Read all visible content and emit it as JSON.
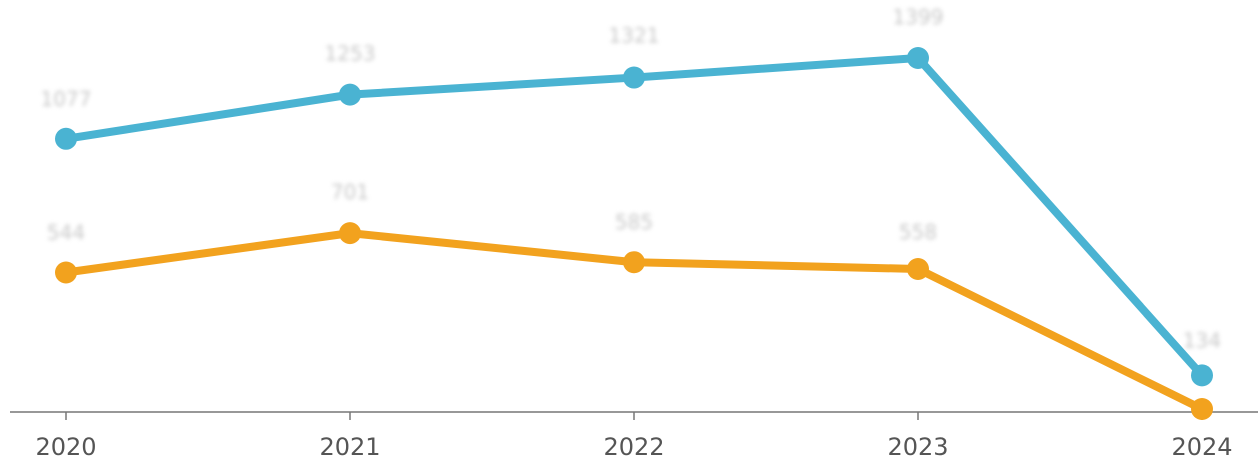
{
  "chart_data": {
    "type": "line",
    "categories": [
      "2020",
      "2021",
      "2022",
      "2023",
      "2024"
    ],
    "series": [
      {
        "name": "",
        "color": "#4ab3d2",
        "values": [
          1077,
          1253,
          1321,
          1399,
          134
        ]
      },
      {
        "name": "",
        "color": "#f2a21e",
        "values": [
          544,
          701,
          585,
          558,
          0
        ]
      }
    ],
    "data_labels": [
      [
        "1077",
        "1253",
        "1321",
        "1399",
        "134"
      ],
      [
        "544",
        "701",
        "585",
        "558",
        ""
      ]
    ],
    "title": "",
    "xlabel": "",
    "ylabel": "",
    "ylim": [
      0,
      1600
    ],
    "grid": false,
    "legend": "none"
  }
}
